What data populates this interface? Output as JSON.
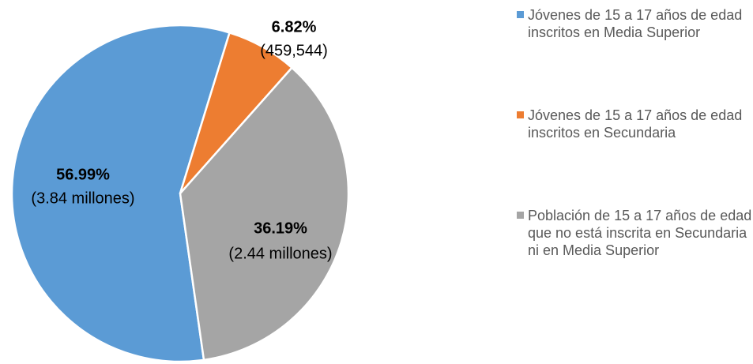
{
  "chart_data": {
    "type": "pie",
    "series": [
      {
        "name": "Jóvenes de 15 a 17 años de edad inscritos en Media Superior",
        "color": "#5b9bd5",
        "values": [
          56.99
        ],
        "value_labels": [
          "56.99%"
        ],
        "detail_labels": [
          "(3.84 millones)"
        ]
      },
      {
        "name": "Jóvenes de 15 a 17 años de edad inscritos en Secundaria",
        "color": "#ed7d31",
        "values": [
          6.82
        ],
        "value_labels": [
          "6.82%"
        ],
        "detail_labels": [
          "(459,544)"
        ]
      },
      {
        "name": "Población de 15 a 17 años de edad que no está inscrita en Secundaria ni en Media Superior",
        "color": "#a5a5a5",
        "values": [
          36.19
        ],
        "value_labels": [
          "36.19%"
        ],
        "detail_labels": [
          "(2.44 millones)"
        ]
      }
    ],
    "legend": "right"
  }
}
